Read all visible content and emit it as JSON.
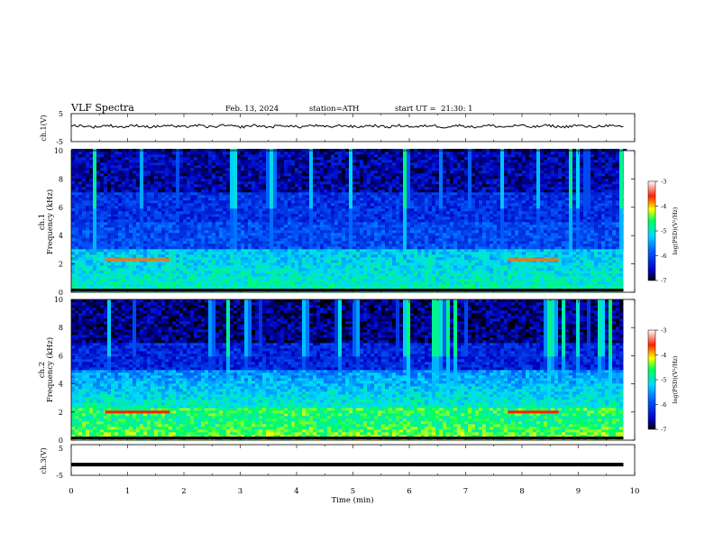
{
  "header": {
    "title": "VLF Spectra",
    "date": "Feb. 13, 2024",
    "station": "station=ATH",
    "start": "start UT =  21:30: 1"
  },
  "chart_data": [
    {
      "type": "line",
      "panel": "ch1-waveform",
      "ylabel": "ch.1(V)",
      "ylim": [
        -5,
        5
      ],
      "yticks": [
        "5",
        "-5"
      ],
      "baseline": 0.5,
      "xlim": [
        0,
        10
      ],
      "series": [
        {
          "x": [
            0,
            9.8
          ],
          "y": [
            0.5,
            0.5
          ]
        }
      ]
    },
    {
      "type": "heatmap",
      "panel": "ch1-spectrogram",
      "ylabel": "ch.1\nFrequency (kHz)",
      "ylim": [
        0,
        10
      ],
      "yticks": [
        "0",
        "2",
        "4",
        "6",
        "8",
        "10"
      ],
      "xlim": [
        0,
        10
      ],
      "data_end_min": 9.8,
      "band_features": [
        {
          "freq_khz": 2.3,
          "x_from": 0.6,
          "x_to": 1.75,
          "level": -3.8
        },
        {
          "freq_khz": 2.3,
          "x_from": 7.75,
          "x_to": 8.65,
          "level": -3.8
        }
      ],
      "colorbar": {
        "label": "log(PSD)(V²/Hz)",
        "range": [
          -7,
          -3
        ],
        "ticks": [
          "-3",
          "-4",
          "-5",
          "-6",
          "-7"
        ]
      }
    },
    {
      "type": "heatmap",
      "panel": "ch2-spectrogram",
      "ylabel": "ch.2\nFrequency (kHz)",
      "ylim": [
        0,
        10
      ],
      "yticks": [
        "0",
        "2",
        "4",
        "6",
        "8",
        "10"
      ],
      "xlim": [
        0,
        10
      ],
      "data_end_min": 9.8,
      "band_features": [
        {
          "freq_khz": 2.0,
          "x_from": 0.6,
          "x_to": 1.75,
          "level": -3.6
        },
        {
          "freq_khz": 2.0,
          "x_from": 7.75,
          "x_to": 8.65,
          "level": -3.6
        }
      ],
      "colorbar": {
        "label": "log(PSD)(V²/Hz)",
        "range": [
          -7,
          -3
        ],
        "ticks": [
          "-3",
          "-4",
          "-5",
          "-6",
          "-7"
        ]
      }
    },
    {
      "type": "line",
      "panel": "ch3-waveform",
      "ylabel": "ch.3(V)",
      "ylim": [
        -5,
        5
      ],
      "yticks": [
        "5",
        "-5"
      ],
      "baseline": -1.5,
      "xlim": [
        0,
        10
      ],
      "xlabel": "Time (min)",
      "xticks": [
        "0",
        "1",
        "2",
        "3",
        "4",
        "5",
        "6",
        "7",
        "8",
        "9",
        "10"
      ],
      "series": [
        {
          "x": [
            0,
            9.8
          ],
          "y": [
            -1.5,
            -1.5
          ]
        }
      ]
    }
  ]
}
